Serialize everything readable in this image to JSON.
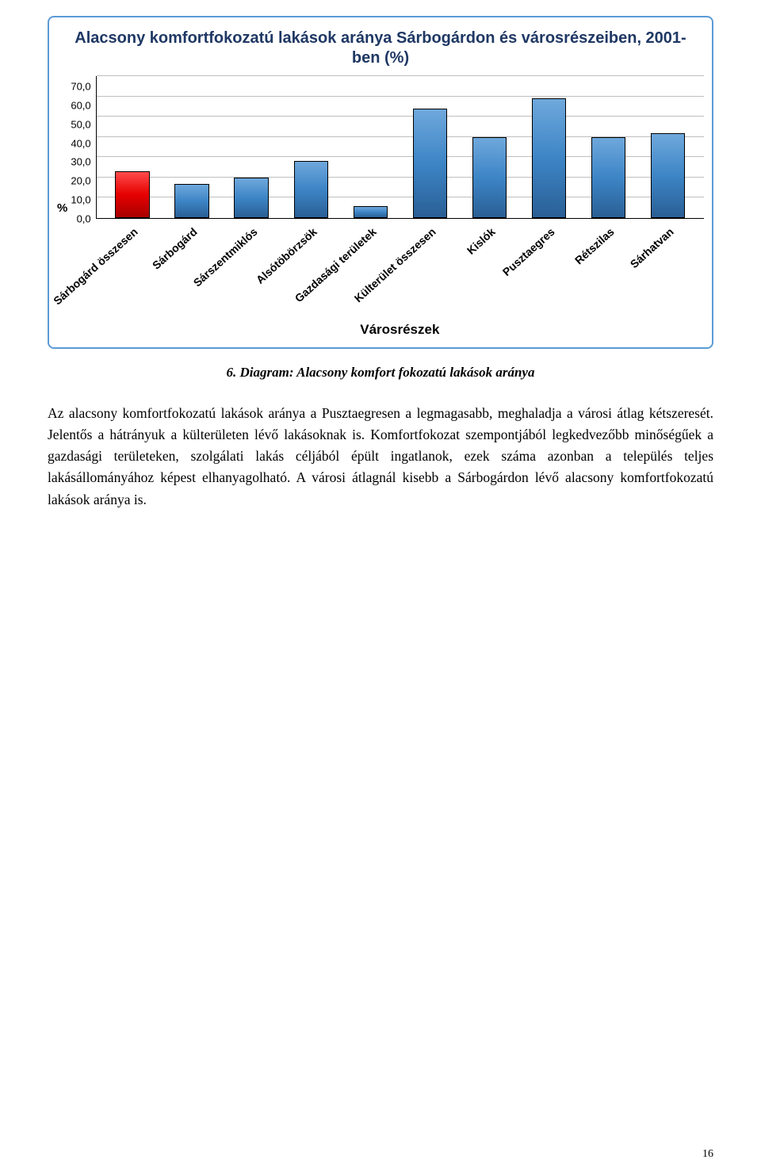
{
  "chart": {
    "type": "bar",
    "title": "Alacsony komfortfokozatú lakások aránya Sárbogárdon és városrészeiben, 2001-ben (%)",
    "ylabel": "%",
    "xlabel": "Városrészek",
    "ymax": 70,
    "ytick_step": 10,
    "yticks": [
      "70,0",
      "60,0",
      "50,0",
      "40,0",
      "30,0",
      "20,0",
      "10,0",
      "0,0"
    ],
    "categories": [
      "Sárbogárd összesen",
      "Sárbogárd",
      "Sárszentmiklós",
      "Alsótöbörzsök",
      "Gazdasági területek",
      "Külterület összesen",
      "Kislók",
      "Pusztaegres",
      "Rétszilas",
      "Sárhatvan"
    ],
    "values": [
      23,
      17,
      20,
      28,
      6,
      54,
      40,
      59,
      40,
      42
    ],
    "bar_colors": [
      "#e60000",
      "#3d85c6",
      "#3d85c6",
      "#3d85c6",
      "#3d85c6",
      "#3d85c6",
      "#3d85c6",
      "#3d85c6",
      "#3d85c6",
      "#3d85c6"
    ],
    "frame_border_color": "#5b9bd5",
    "grid_color": "#bfbfbf",
    "axis_color": "#000000",
    "title_color": "#1f3864",
    "title_fontsize": 20,
    "label_fontsize": 14,
    "tick_fontsize": 13
  },
  "caption": "6. Diagram: Alacsony komfort fokozatú lakások aránya",
  "body": "Az alacsony komfortfokozatú lakások aránya a Pusztaegresen a legmagasabb, meghaladja a városi átlag kétszeresét. Jelentős a hátrányuk a külterületen lévő lakásoknak is. Komfortfokozat szempontjából legkedvezőbb minőségűek a gazdasági területeken, szolgálati lakás céljából épült ingatlanok, ezek száma azonban a település teljes lakásállományához képest elhanyagolható. A városi átlagnál kisebb a Sárbogárdon lévő alacsony komfortfokozatú lakások aránya is.",
  "page_number": "16"
}
